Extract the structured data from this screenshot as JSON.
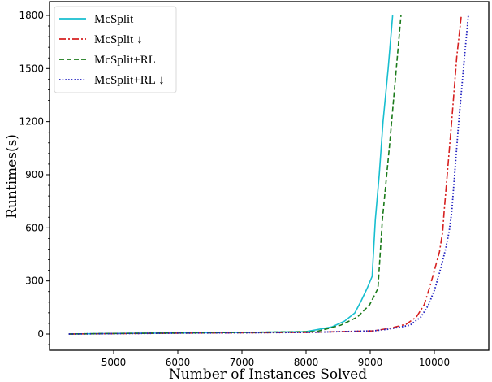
{
  "chart_data": {
    "type": "line",
    "title": "",
    "xlabel": "Number of Instances Solved",
    "ylabel": "Runtimes(s)",
    "xlim": [
      4030,
      10880
    ],
    "ylim": [
      -90,
      1810
    ],
    "xticks": [
      5000,
      6000,
      7000,
      8000,
      9000,
      10000
    ],
    "xtick_labels": [
      "5000",
      "6000",
      "7000",
      "8000",
      "9000",
      "10000"
    ],
    "yticks": [
      0,
      300,
      600,
      900,
      1200,
      1500,
      1800
    ],
    "ytick_labels": [
      "0",
      "300",
      "600",
      "900",
      "1200",
      "1500",
      "1800"
    ],
    "grid": false,
    "legend_position": "upper left",
    "series": [
      {
        "name": "McSplit",
        "color": "#17becf",
        "style": "solid",
        "x": [
          4300,
          5000,
          6000,
          7000,
          8000,
          8400,
          8600,
          8760,
          8860,
          8950,
          9030,
          9080,
          9140,
          9200,
          9280,
          9350
        ],
        "y": [
          0,
          3,
          6,
          9,
          14,
          40,
          73,
          119,
          188,
          257,
          326,
          647,
          900,
          1200,
          1500,
          1800
        ]
      },
      {
        "name": "McSplit ↓",
        "color": "#d62020",
        "style": "dashdot",
        "x": [
          4300,
          6000,
          8040,
          9050,
          9300,
          9560,
          9720,
          9840,
          9940,
          10010,
          10080,
          10130,
          10150,
          10270,
          10350,
          10420
        ],
        "y": [
          0,
          5,
          9,
          18,
          32,
          55,
          96,
          165,
          280,
          372,
          464,
          579,
          684,
          1198,
          1565,
          1800
        ]
      },
      {
        "name": "McSplit+RL",
        "color": "#1a7a1a",
        "style": "dashed",
        "x": [
          4300,
          5000,
          6000,
          7000,
          8160,
          8540,
          8800,
          8990,
          9120,
          9190,
          9300,
          9390,
          9480
        ],
        "y": [
          0,
          3,
          6,
          9,
          14,
          50,
          96,
          165,
          257,
          647,
          1060,
          1430,
          1800
        ]
      },
      {
        "name": "McSplit+RL ↓",
        "color": "#1f1fbf",
        "style": "dotted",
        "x": [
          4300,
          6000,
          8040,
          9050,
          9300,
          9620,
          9790,
          9910,
          10010,
          10100,
          10180,
          10230,
          10270,
          10380,
          10470,
          10530
        ],
        "y": [
          0,
          5,
          9,
          18,
          28,
          50,
          96,
          165,
          257,
          372,
          487,
          579,
          684,
          1198,
          1565,
          1800
        ]
      }
    ]
  }
}
